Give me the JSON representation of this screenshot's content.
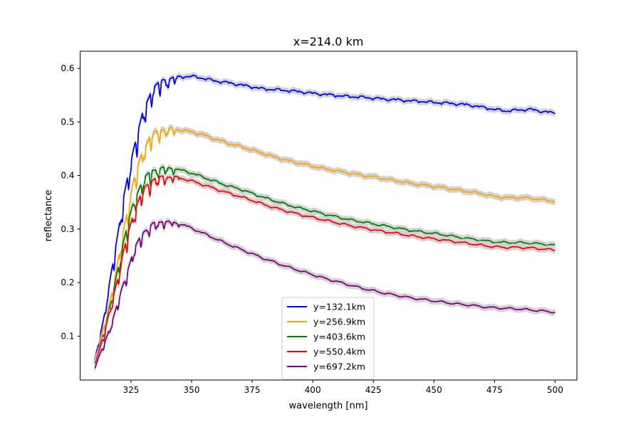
{
  "chart_data": {
    "type": "line",
    "title": "x=214.0 km",
    "xlabel": "wavelength [nm]",
    "ylabel": "reflectance",
    "xlim": [
      304,
      509
    ],
    "ylim": [
      0.018,
      0.632
    ],
    "xticks": [
      325,
      350,
      375,
      400,
      425,
      450,
      475,
      500
    ],
    "xtick_labels": [
      "325",
      "350",
      "375",
      "400",
      "425",
      "450",
      "475",
      "500"
    ],
    "yticks": [
      0.1,
      0.2,
      0.3,
      0.4,
      0.5,
      0.6
    ],
    "ytick_labels": [
      "0.1",
      "0.2",
      "0.3",
      "0.4",
      "0.5",
      "0.6"
    ],
    "grid": false,
    "legend_position": "lower-center",
    "uncertainty_band_color": "#d3d3d3",
    "x_range": [
      310,
      500
    ],
    "series": [
      {
        "name": "y=132.1km",
        "color": "#0000ff",
        "x": [
          310,
          314,
          318,
          322,
          326,
          330,
          334,
          338,
          342,
          346,
          350,
          355,
          360,
          365,
          370,
          375,
          380,
          385,
          390,
          395,
          400,
          405,
          410,
          415,
          420,
          425,
          430,
          435,
          440,
          445,
          450,
          455,
          460,
          465,
          470,
          475,
          480,
          485,
          490,
          495,
          500
        ],
        "y": [
          0.055,
          0.14,
          0.25,
          0.36,
          0.45,
          0.52,
          0.565,
          0.578,
          0.583,
          0.585,
          0.586,
          0.582,
          0.577,
          0.574,
          0.57,
          0.566,
          0.562,
          0.561,
          0.559,
          0.557,
          0.554,
          0.552,
          0.55,
          0.548,
          0.547,
          0.545,
          0.543,
          0.542,
          0.54,
          0.539,
          0.537,
          0.536,
          0.534,
          0.532,
          0.528,
          0.524,
          0.521,
          0.523,
          0.524,
          0.52,
          0.517
        ]
      },
      {
        "name": "y=256.9km",
        "color": "#ffa500",
        "x": [
          310,
          314,
          318,
          322,
          326,
          330,
          334,
          338,
          342,
          346,
          350,
          355,
          360,
          365,
          370,
          375,
          380,
          385,
          390,
          395,
          400,
          405,
          410,
          415,
          420,
          425,
          430,
          435,
          440,
          445,
          450,
          455,
          460,
          465,
          470,
          475,
          480,
          485,
          490,
          495,
          500
        ],
        "y": [
          0.055,
          0.12,
          0.2,
          0.3,
          0.39,
          0.45,
          0.48,
          0.487,
          0.488,
          0.485,
          0.482,
          0.476,
          0.468,
          0.461,
          0.455,
          0.448,
          0.441,
          0.434,
          0.428,
          0.423,
          0.418,
          0.413,
          0.409,
          0.405,
          0.401,
          0.398,
          0.394,
          0.39,
          0.386,
          0.383,
          0.38,
          0.377,
          0.373,
          0.37,
          0.366,
          0.361,
          0.359,
          0.359,
          0.358,
          0.355,
          0.352
        ]
      },
      {
        "name": "y=403.6km",
        "color": "#008000",
        "x": [
          310,
          314,
          318,
          322,
          326,
          330,
          334,
          338,
          342,
          346,
          350,
          355,
          360,
          365,
          370,
          375,
          380,
          385,
          390,
          395,
          400,
          405,
          410,
          415,
          420,
          425,
          430,
          435,
          440,
          445,
          450,
          455,
          460,
          465,
          470,
          475,
          480,
          485,
          490,
          495,
          500
        ],
        "y": [
          0.05,
          0.11,
          0.19,
          0.28,
          0.35,
          0.395,
          0.41,
          0.415,
          0.414,
          0.41,
          0.405,
          0.397,
          0.389,
          0.381,
          0.375,
          0.367,
          0.359,
          0.352,
          0.345,
          0.339,
          0.334,
          0.328,
          0.323,
          0.318,
          0.314,
          0.31,
          0.306,
          0.302,
          0.298,
          0.295,
          0.292,
          0.289,
          0.285,
          0.282,
          0.279,
          0.276,
          0.275,
          0.275,
          0.274,
          0.272,
          0.27
        ]
      },
      {
        "name": "y=550.4km",
        "color": "#ff0000",
        "x": [
          310,
          314,
          318,
          322,
          326,
          330,
          334,
          338,
          342,
          346,
          350,
          355,
          360,
          365,
          370,
          375,
          380,
          385,
          390,
          395,
          400,
          405,
          410,
          415,
          420,
          425,
          430,
          435,
          440,
          445,
          450,
          455,
          460,
          465,
          470,
          475,
          480,
          485,
          490,
          495,
          500
        ],
        "y": [
          0.05,
          0.105,
          0.18,
          0.26,
          0.33,
          0.375,
          0.393,
          0.398,
          0.398,
          0.395,
          0.39,
          0.383,
          0.375,
          0.368,
          0.361,
          0.354,
          0.346,
          0.339,
          0.333,
          0.327,
          0.322,
          0.317,
          0.312,
          0.307,
          0.303,
          0.299,
          0.295,
          0.292,
          0.288,
          0.285,
          0.282,
          0.279,
          0.276,
          0.273,
          0.27,
          0.267,
          0.266,
          0.266,
          0.265,
          0.263,
          0.261
        ]
      },
      {
        "name": "y=697.2km",
        "color": "#800080",
        "x": [
          310,
          314,
          318,
          322,
          326,
          330,
          334,
          338,
          342,
          346,
          350,
          355,
          360,
          365,
          370,
          375,
          380,
          385,
          390,
          395,
          400,
          405,
          410,
          415,
          420,
          425,
          430,
          435,
          440,
          445,
          450,
          455,
          460,
          465,
          470,
          475,
          480,
          485,
          490,
          495,
          500
        ],
        "y": [
          0.045,
          0.085,
          0.14,
          0.2,
          0.26,
          0.295,
          0.31,
          0.315,
          0.313,
          0.309,
          0.302,
          0.292,
          0.282,
          0.272,
          0.263,
          0.254,
          0.245,
          0.237,
          0.229,
          0.222,
          0.215,
          0.208,
          0.202,
          0.196,
          0.19,
          0.185,
          0.18,
          0.176,
          0.172,
          0.169,
          0.166,
          0.163,
          0.16,
          0.158,
          0.155,
          0.153,
          0.152,
          0.151,
          0.149,
          0.147,
          0.145
        ]
      }
    ]
  }
}
